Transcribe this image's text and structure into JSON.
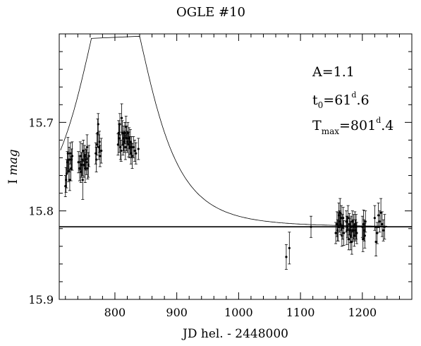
{
  "chart_data": {
    "type": "scatter",
    "title": "OGLE #10",
    "xlabel": "JD hel. - 2448000",
    "ylabel_prefix": "I",
    "ylabel_italic": "mag",
    "xlim": [
      710,
      1280
    ],
    "ylim": [
      15.9,
      15.6
    ],
    "y_inverted": true,
    "x_ticks": [
      800,
      900,
      1000,
      1100,
      1200
    ],
    "x_tick_labels": [
      "800",
      "900",
      "1000",
      "1100",
      "1200"
    ],
    "y_ticks": [
      15.7,
      15.8,
      15.9
    ],
    "y_tick_labels": [
      "15.7",
      "15.8",
      "15.9"
    ],
    "grid": false,
    "annotations": {
      "A": {
        "lead": "A=1.1"
      },
      "t0": {
        "base": "t",
        "sub": "0",
        "eq": "=61",
        "sup": "d",
        "tail": ".6"
      },
      "tmax": {
        "base": "T",
        "sub": "max",
        "eq": "=801",
        "sup": "d",
        "tail": ".4"
      }
    },
    "baseline_mag": 15.818,
    "model": {
      "t0": 801.4,
      "tE": 61.6,
      "u0": 1.05,
      "label": ""
    },
    "series": [
      {
        "x": [
          720,
          721,
          722,
          723,
          724,
          725,
          726,
          727,
          728,
          729,
          730,
          731,
          741,
          743,
          744,
          745,
          746,
          747,
          748,
          749,
          750,
          751,
          752,
          753,
          754,
          755,
          756,
          757,
          758,
          769,
          770,
          771,
          772,
          773,
          774,
          775,
          776,
          778,
          805,
          806,
          807,
          808,
          809,
          810,
          811,
          812,
          813,
          814,
          815,
          816,
          817,
          818,
          819,
          820,
          821,
          822,
          823,
          824,
          825,
          826,
          827,
          828,
          830,
          832,
          834,
          838,
          1077,
          1082,
          1117,
          1157,
          1159,
          1160,
          1161,
          1162,
          1163,
          1164,
          1165,
          1166,
          1167,
          1168,
          1169,
          1170,
          1174,
          1175,
          1176,
          1177,
          1178,
          1179,
          1180,
          1181,
          1182,
          1183,
          1184,
          1185,
          1186,
          1187,
          1188,
          1189,
          1190,
          1191,
          1200,
          1201,
          1202,
          1203,
          1204,
          1205,
          1220,
          1222,
          1224,
          1226,
          1228,
          1230,
          1232,
          1234,
          1236
        ],
        "y": [
          15.772,
          15.765,
          15.758,
          15.745,
          15.735,
          15.755,
          15.742,
          15.765,
          15.735,
          15.752,
          15.742,
          15.738,
          15.745,
          15.752,
          15.738,
          15.756,
          15.748,
          15.742,
          15.765,
          15.732,
          15.748,
          15.738,
          15.752,
          15.742,
          15.745,
          15.728,
          15.752,
          15.748,
          15.738,
          15.735,
          15.742,
          15.725,
          15.712,
          15.702,
          15.728,
          15.722,
          15.738,
          15.732,
          15.725,
          15.712,
          15.718,
          15.702,
          15.728,
          15.732,
          15.695,
          15.712,
          15.725,
          15.718,
          15.722,
          15.712,
          15.728,
          15.705,
          15.718,
          15.722,
          15.712,
          15.725,
          15.718,
          15.728,
          15.722,
          15.735,
          15.728,
          15.738,
          15.728,
          15.732,
          15.735,
          15.73,
          15.852,
          15.842,
          15.818,
          15.825,
          15.815,
          15.822,
          15.818,
          15.805,
          15.812,
          15.802,
          15.815,
          15.808,
          15.828,
          15.818,
          15.808,
          15.825,
          15.812,
          15.822,
          15.818,
          15.808,
          15.832,
          15.815,
          15.822,
          15.828,
          15.818,
          15.835,
          15.812,
          15.822,
          15.818,
          15.828,
          15.815,
          15.822,
          15.818,
          15.825,
          15.818,
          15.832,
          15.815,
          15.822,
          15.828,
          15.812,
          15.808,
          15.835,
          15.825,
          15.805,
          15.812,
          15.802,
          15.815,
          15.822,
          15.818
        ],
        "err": [
          0.012,
          0.014,
          0.016,
          0.012,
          0.018,
          0.012,
          0.014,
          0.012,
          0.012,
          0.014,
          0.012,
          0.016,
          0.012,
          0.014,
          0.016,
          0.012,
          0.014,
          0.018,
          0.022,
          0.012,
          0.014,
          0.012,
          0.016,
          0.012,
          0.014,
          0.014,
          0.012,
          0.014,
          0.012,
          0.012,
          0.014,
          0.012,
          0.016,
          0.012,
          0.014,
          0.012,
          0.012,
          0.014,
          0.012,
          0.014,
          0.016,
          0.012,
          0.014,
          0.012,
          0.016,
          0.014,
          0.012,
          0.014,
          0.012,
          0.012,
          0.014,
          0.012,
          0.014,
          0.012,
          0.012,
          0.014,
          0.012,
          0.012,
          0.014,
          0.012,
          0.012,
          0.014,
          0.012,
          0.012,
          0.012,
          0.012,
          0.014,
          0.018,
          0.012,
          0.012,
          0.014,
          0.012,
          0.016,
          0.014,
          0.012,
          0.016,
          0.012,
          0.014,
          0.012,
          0.014,
          0.012,
          0.014,
          0.012,
          0.016,
          0.012,
          0.014,
          0.012,
          0.012,
          0.014,
          0.016,
          0.012,
          0.014,
          0.012,
          0.012,
          0.014,
          0.012,
          0.014,
          0.012,
          0.014,
          0.012,
          0.012,
          0.014,
          0.016,
          0.012,
          0.014,
          0.012,
          0.014,
          0.016,
          0.012,
          0.014,
          0.012,
          0.016,
          0.014,
          0.012,
          0.014
        ]
      }
    ]
  }
}
